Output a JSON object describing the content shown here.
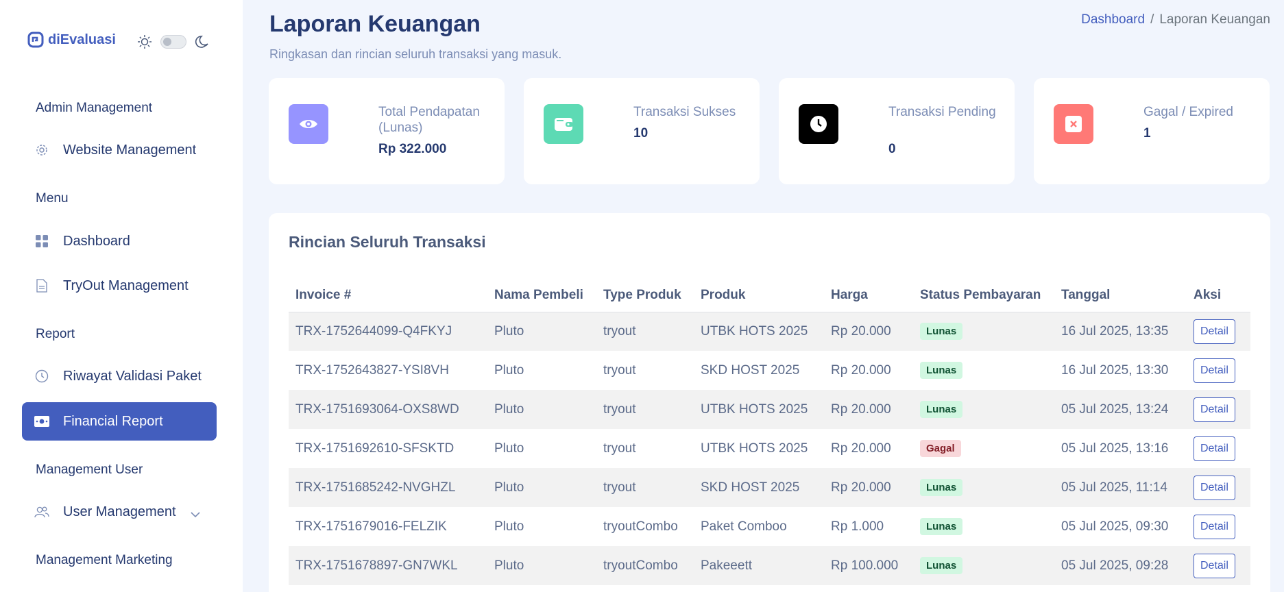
{
  "sidebar": {
    "brand": "diEvaluasi",
    "sections": [
      {
        "title": "Admin Management",
        "items": [
          {
            "label": "Website Management",
            "icon": "gear-icon"
          }
        ]
      },
      {
        "title": "Menu",
        "items": [
          {
            "label": "Dashboard",
            "icon": "grid-icon"
          },
          {
            "label": "TryOut Management",
            "icon": "document-icon"
          }
        ]
      },
      {
        "title": "Report",
        "items": [
          {
            "label": "Riwayat Validasi Paket",
            "icon": "clock-icon"
          },
          {
            "label": "Financial Report",
            "icon": "cash-icon",
            "active": true
          }
        ]
      },
      {
        "title": "Management User",
        "items": [
          {
            "label": "User Management",
            "icon": "users-icon"
          }
        ]
      },
      {
        "title": "Management Marketing",
        "items": []
      }
    ]
  },
  "header": {
    "title": "Laporan Keuangan",
    "subtitle": "Ringkasan dan rincian seluruh transaksi yang masuk.",
    "breadcrumb": {
      "home": "Dashboard",
      "separator": "/",
      "current": "Laporan Keuangan"
    }
  },
  "stats": [
    {
      "label": "Total Pendapatan (Lunas)",
      "value": "Rp 322.000",
      "icon": "eye-icon",
      "color": "#9694ff"
    },
    {
      "label": "Transaksi Sukses",
      "value": "10",
      "icon": "wallet-icon",
      "color": "#57caeb"
    },
    {
      "label": "Transaksi Pending",
      "value": "0",
      "icon": "clock-icon",
      "color": "#000000"
    },
    {
      "label": "Gagal / Expired",
      "value": "1",
      "icon": "x-icon",
      "color": "#ff7976"
    }
  ],
  "table": {
    "title": "Rincian Seluruh Transaksi",
    "headers": [
      "Invoice #",
      "Nama Pembeli",
      "Type Produk",
      "Produk",
      "Harga",
      "Status Pembayaran",
      "Tanggal",
      "Aksi"
    ],
    "action_label": "Detail",
    "rows": [
      {
        "invoice": "TRX-1752644099-Q4FKYJ",
        "buyer": "Pluto",
        "type": "tryout",
        "product": "UTBK HOTS 2025",
        "price": "Rp 20.000",
        "status": "Lunas",
        "date": "16 Jul 2025, 13:35"
      },
      {
        "invoice": "TRX-1752643827-YSI8VH",
        "buyer": "Pluto",
        "type": "tryout",
        "product": "SKD HOST 2025",
        "price": "Rp 20.000",
        "status": "Lunas",
        "date": "16 Jul 2025, 13:30"
      },
      {
        "invoice": "TRX-1751693064-OXS8WD",
        "buyer": "Pluto",
        "type": "tryout",
        "product": "UTBK HOTS 2025",
        "price": "Rp 20.000",
        "status": "Lunas",
        "date": "05 Jul 2025, 13:24"
      },
      {
        "invoice": "TRX-1751692610-SFSKTD",
        "buyer": "Pluto",
        "type": "tryout",
        "product": "UTBK HOTS 2025",
        "price": "Rp 20.000",
        "status": "Gagal",
        "date": "05 Jul 2025, 13:16"
      },
      {
        "invoice": "TRX-1751685242-NVGHZL",
        "buyer": "Pluto",
        "type": "tryout",
        "product": "SKD HOST 2025",
        "price": "Rp 20.000",
        "status": "Lunas",
        "date": "05 Jul 2025, 11:14"
      },
      {
        "invoice": "TRX-1751679016-FELZIK",
        "buyer": "Pluto",
        "type": "tryoutCombo",
        "product": "Paket Comboo",
        "price": "Rp 1.000",
        "status": "Lunas",
        "date": "05 Jul 2025, 09:30"
      },
      {
        "invoice": "TRX-1751678897-GN7WKL",
        "buyer": "Pluto",
        "type": "tryoutCombo",
        "product": "Pakeeett",
        "price": "Rp 100.000",
        "status": "Lunas",
        "date": "05 Jul 2025, 09:28"
      }
    ]
  }
}
